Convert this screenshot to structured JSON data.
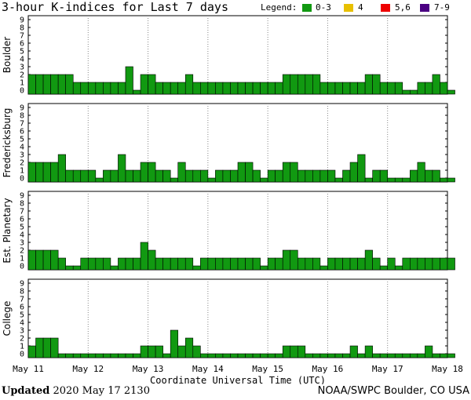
{
  "chart_data": {
    "type": "bar",
    "title": "3-hour K-indices for Last 7 days",
    "legend": {
      "label": "Legend:",
      "entries": [
        {
          "label": "0-3",
          "color": "#119911"
        },
        {
          "label": "4",
          "color": "#e8c000"
        },
        {
          "label": "5,6",
          "color": "#ee0000"
        },
        {
          "label": "7-9",
          "color": "#4b0082"
        }
      ]
    },
    "xlabel": "Coordinate Universal Time (UTC)",
    "x_tick_labels": [
      "May 11",
      "May 12",
      "May 13",
      "May 14",
      "May 15",
      "May 16",
      "May 17",
      "May 18"
    ],
    "ylim": [
      0,
      9
    ],
    "y_ticks": [
      "0",
      "1",
      "2",
      "3",
      "4",
      "5",
      "6",
      "7",
      "8",
      "9"
    ],
    "bar_interval_hours": 3,
    "panels": [
      {
        "name": "Boulder",
        "values": [
          2,
          2,
          2,
          2,
          2,
          2,
          1,
          1,
          1,
          1,
          1,
          1,
          1,
          3,
          0,
          2,
          2,
          1,
          1,
          1,
          1,
          2,
          1,
          1,
          1,
          1,
          1,
          1,
          1,
          1,
          1,
          1,
          1,
          1,
          2,
          2,
          2,
          2,
          2,
          1,
          1,
          1,
          1,
          1,
          1,
          2,
          2,
          1,
          1,
          1,
          0,
          0,
          1,
          1,
          2,
          1,
          0
        ]
      },
      {
        "name": "Fredericksburg",
        "values": [
          2,
          2,
          2,
          2,
          3,
          1,
          1,
          1,
          1,
          0,
          1,
          1,
          3,
          1,
          1,
          2,
          2,
          1,
          1,
          0,
          2,
          1,
          1,
          1,
          0,
          1,
          1,
          1,
          2,
          2,
          1,
          0,
          1,
          1,
          2,
          2,
          1,
          1,
          1,
          1,
          1,
          0,
          1,
          2,
          3,
          0,
          1,
          1,
          0,
          0,
          0,
          1,
          2,
          1,
          1,
          0,
          0
        ]
      },
      {
        "name": "Est. Planetary",
        "values": [
          2,
          2,
          2,
          2,
          1,
          0,
          0,
          1,
          1,
          1,
          1,
          0,
          1,
          1,
          1,
          3,
          2,
          1,
          1,
          1,
          1,
          1,
          0,
          1,
          1,
          1,
          1,
          1,
          1,
          1,
          1,
          0,
          1,
          1,
          2,
          2,
          1,
          1,
          1,
          0,
          1,
          1,
          1,
          1,
          1,
          2,
          1,
          0,
          1,
          0,
          1,
          1,
          1,
          1,
          1,
          1,
          1
        ]
      },
      {
        "name": "College",
        "values": [
          1,
          2,
          2,
          2,
          0,
          0,
          0,
          0,
          0,
          0,
          0,
          0,
          0,
          0,
          0,
          1,
          1,
          1,
          0,
          3,
          1,
          2,
          1,
          0,
          0,
          0,
          0,
          0,
          0,
          0,
          0,
          0,
          0,
          0,
          1,
          1,
          1,
          0,
          0,
          0,
          0,
          0,
          0,
          1,
          0,
          1,
          0,
          0,
          0,
          0,
          0,
          0,
          0,
          1,
          0,
          0,
          0
        ]
      }
    ]
  },
  "footer": {
    "updated_label": "Updated",
    "updated_time": "2020 May 17 2130",
    "credit": "NOAA/SWPC Boulder, CO USA"
  }
}
